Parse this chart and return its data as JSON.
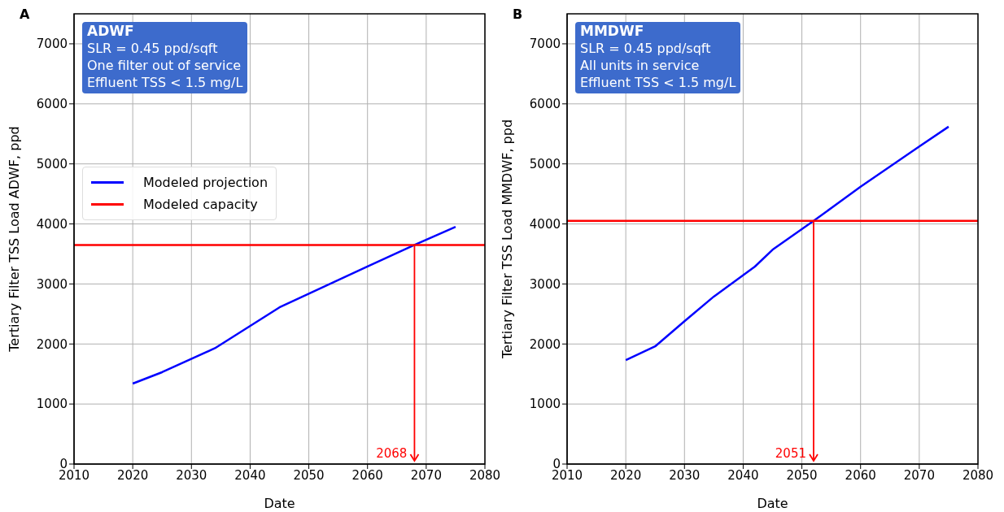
{
  "chart_data": [
    {
      "type": "line",
      "title": "A",
      "xlabel": "Date",
      "ylabel": "Tertiary Filter TSS Load ADWF, ppd",
      "xlim": [
        2010,
        2080
      ],
      "xticks": [
        2010,
        2020,
        2030,
        2040,
        2050,
        2060,
        2070,
        2080
      ],
      "ylim": [
        0,
        7500
      ],
      "yticks": [
        0,
        1000,
        2000,
        3000,
        4000,
        5000,
        6000,
        7000
      ],
      "grid": true,
      "legend": "center left",
      "series": [
        {
          "name": "Modeled projection",
          "color": "#0000ff",
          "x": [
            2020,
            2025,
            2034,
            2045,
            2060,
            2068,
            2075
          ],
          "values": [
            1340,
            1530,
            1930,
            2610,
            3290,
            3650,
            3950
          ]
        },
        {
          "name": "Modeled capacity",
          "color": "#ff0000",
          "x": [
            2010,
            2080
          ],
          "values": [
            3650,
            3650
          ]
        }
      ],
      "annotations": [
        "ADWF",
        "SLR = 0.45 ppd/sqft",
        "One filter out of service",
        "Effluent TSS < 1.5 mg/L",
        {
          "text": "2068",
          "x": 2068,
          "y": 3650
        }
      ]
    },
    {
      "type": "line",
      "title": "B",
      "xlabel": "Date",
      "ylabel": "Tertiary Filter TSS Load MMDWF, ppd",
      "xlim": [
        2010,
        2080
      ],
      "xticks": [
        2010,
        2020,
        2030,
        2040,
        2050,
        2060,
        2070,
        2080
      ],
      "ylim": [
        0,
        7500
      ],
      "yticks": [
        0,
        1000,
        2000,
        3000,
        4000,
        5000,
        6000,
        7000
      ],
      "grid": true,
      "series": [
        {
          "color": "#0000ff",
          "x": [
            2020,
            2025,
            2030,
            2035,
            2042,
            2045,
            2052,
            2060,
            2070,
            2075
          ],
          "values": [
            1730,
            1960,
            2380,
            2790,
            3290,
            3570,
            4050,
            4620,
            5290,
            5620
          ]
        },
        {
          "color": "#ff0000",
          "x": [
            2010,
            2080
          ],
          "values": [
            4050,
            4050
          ]
        }
      ],
      "annotations": [
        "MMDWF",
        "SLR = 0.45 ppd/sqft",
        "All units in service",
        "Effluent TSS < 1.5 mg/L",
        {
          "text": "2051",
          "x": 2052,
          "y": 4050
        }
      ]
    }
  ]
}
